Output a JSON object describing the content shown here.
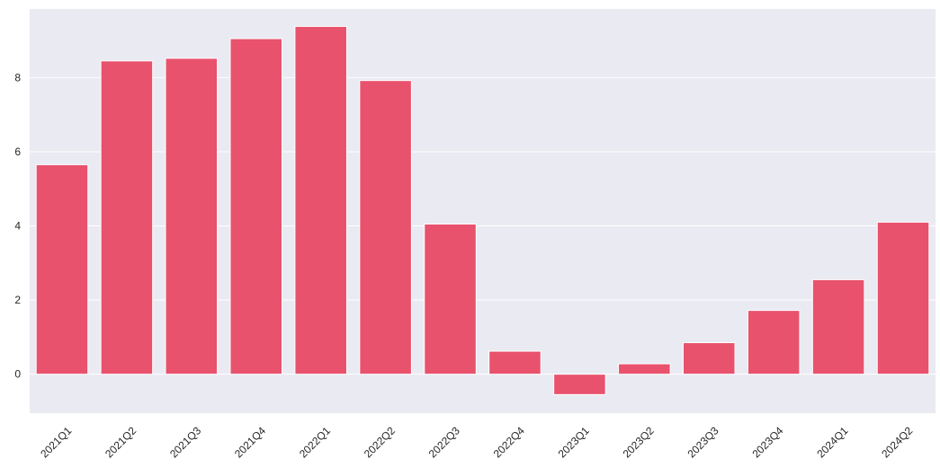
{
  "chart_data": {
    "type": "bar",
    "title": "",
    "xlabel": "",
    "ylabel": "",
    "categories": [
      "2021Q1",
      "2021Q2",
      "2021Q3",
      "2021Q4",
      "2022Q1",
      "2022Q2",
      "2022Q3",
      "2022Q4",
      "2023Q1",
      "2023Q2",
      "2023Q3",
      "2023Q4",
      "2024Q1",
      "2024Q2"
    ],
    "values": [
      5.65,
      8.45,
      8.52,
      9.05,
      9.38,
      7.92,
      4.05,
      0.62,
      -0.55,
      0.28,
      0.85,
      1.72,
      2.55,
      4.1
    ],
    "ylim": [
      -1.05,
      9.85
    ],
    "yticks": [
      0,
      2,
      4,
      6,
      8
    ],
    "grid": true,
    "bar_color": "#e8526d",
    "background_color": "#eaeaf2",
    "grid_color": "#ffffff"
  }
}
